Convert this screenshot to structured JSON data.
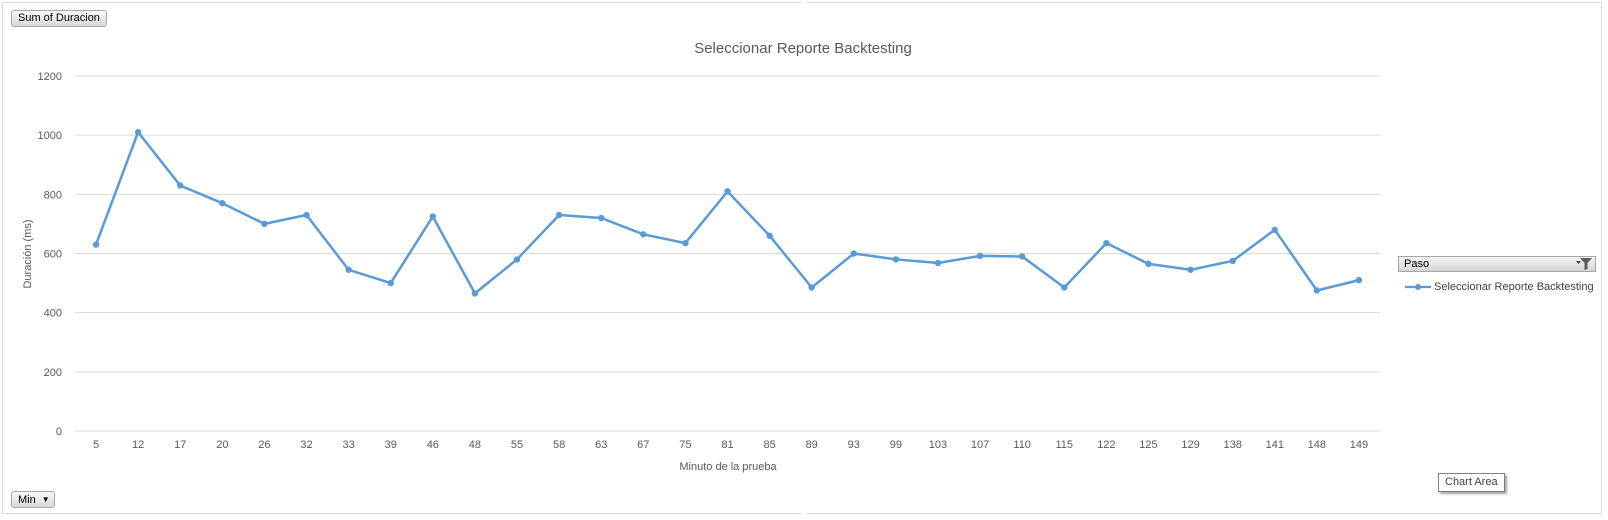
{
  "pivot": {
    "values_field": "Sum of Duracion",
    "axis_field": "Min",
    "legend_field": "Paso",
    "tooltip": "Chart Area"
  },
  "colors": {
    "series": "#5B9BD5",
    "grid": "#d9d9d9",
    "text": "#595959"
  },
  "chart_data": {
    "type": "line",
    "title": "Seleccionar Reporte Backtesting",
    "xlabel": "Minuto de la prueba",
    "ylabel": "Duración (ms)",
    "ylim": [
      0,
      1200
    ],
    "yticks": [
      0,
      200,
      400,
      600,
      800,
      1000,
      1200
    ],
    "grid": true,
    "legend_position": "right",
    "categories": [
      "5",
      "12",
      "17",
      "20",
      "26",
      "32",
      "33",
      "39",
      "46",
      "48",
      "55",
      "58",
      "63",
      "67",
      "75",
      "81",
      "85",
      "89",
      "93",
      "99",
      "103",
      "107",
      "110",
      "115",
      "122",
      "125",
      "129",
      "138",
      "141",
      "148",
      "149"
    ],
    "series": [
      {
        "name": "Seleccionar Reporte Backtesting",
        "values": [
          630,
          1010,
          830,
          770,
          700,
          730,
          545,
          500,
          725,
          465,
          580,
          730,
          720,
          665,
          635,
          810,
          660,
          485,
          600,
          580,
          568,
          592,
          590,
          485,
          635,
          565,
          545,
          575,
          680,
          475,
          510
        ]
      }
    ]
  }
}
